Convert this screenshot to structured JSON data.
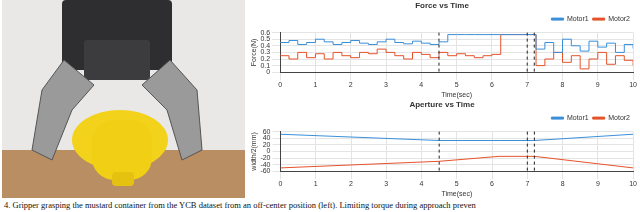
{
  "caption": "4.   Gripper grasping the mustard container from the YCB dataset from an off-center position (left). Limiting torque during approach preven",
  "chart_data": [
    {
      "type": "line",
      "title": "Force vs Time",
      "x_label": "Time(sec)",
      "y_label": "Force(N)",
      "line_style": "steps",
      "x": [
        0,
        0.25,
        0.5,
        0.75,
        1,
        1.25,
        1.5,
        1.75,
        2,
        2.25,
        2.5,
        2.75,
        3,
        3.25,
        3.5,
        3.75,
        4,
        4.25,
        4.5,
        4.75,
        5,
        5.25,
        5.5,
        5.75,
        6,
        6.25,
        6.5,
        6.75,
        7,
        7.25,
        7.5,
        7.75,
        8,
        8.25,
        8.5,
        8.75,
        9,
        9.25,
        9.5,
        9.75,
        10
      ],
      "series": [
        {
          "name": "Motor1",
          "color": "#3b8fd9",
          "values": [
            0.45,
            0.48,
            0.42,
            0.45,
            0.5,
            0.46,
            0.42,
            0.45,
            0.48,
            0.44,
            0.42,
            0.46,
            0.5,
            0.45,
            0.43,
            0.47,
            0.44,
            0.42,
            0.46,
            0.57,
            0.57,
            0.57,
            0.57,
            0.57,
            0.57,
            0.57,
            0.57,
            0.57,
            0.57,
            0.35,
            0.45,
            0.3,
            0.5,
            0.4,
            0.32,
            0.47,
            0.38,
            0.44,
            0.3,
            0.42,
            0.36
          ]
        },
        {
          "name": "Motor2",
          "color": "#e5532b",
          "values": [
            0.25,
            0.2,
            0.3,
            0.22,
            0.28,
            0.2,
            0.3,
            0.25,
            0.22,
            0.3,
            0.28,
            0.35,
            0.3,
            0.25,
            0.2,
            0.3,
            0.27,
            0.22,
            0.3,
            0.25,
            0.28,
            0.25,
            0.22,
            0.25,
            0.27,
            0.57,
            0.57,
            0.57,
            0.57,
            0.1,
            0.2,
            0.3,
            0.15,
            0.25,
            0.05,
            0.2,
            0.3,
            0.12,
            0.25,
            0.18,
            0.1
          ]
        }
      ],
      "xlim": [
        0,
        10
      ],
      "xticks": [
        0,
        1,
        2,
        3,
        4,
        5,
        6,
        7,
        8,
        9,
        10
      ],
      "ylim": [
        0,
        0.6
      ],
      "yticks": [
        0,
        0.1,
        0.2,
        0.3,
        0.4,
        0.5,
        0.6
      ],
      "vlines": [
        4.5,
        7.0,
        7.2
      ],
      "grid": true,
      "legend": "upper right"
    },
    {
      "type": "line",
      "title": "Aperture vs Time",
      "x_label": "Time(sec)",
      "y_label": "width/2(mm)",
      "line_style": "solid",
      "x": [
        0,
        4.5,
        6.2,
        7.2,
        10
      ],
      "series": [
        {
          "name": "Motor1",
          "color": "#3b8fd9",
          "values": [
            52,
            33,
            33,
            33,
            52
          ]
        },
        {
          "name": "Motor2",
          "color": "#e5532b",
          "values": [
            -50,
            -30,
            -15,
            -15,
            -50
          ]
        }
      ],
      "xlim": [
        0,
        10
      ],
      "xticks": [
        0,
        1,
        2,
        3,
        4,
        5,
        6,
        7,
        8,
        9,
        10
      ],
      "ylim": [
        -60,
        60
      ],
      "yticks": [
        -60,
        -40,
        -20,
        0,
        20,
        40,
        60
      ],
      "vlines": [
        4.5,
        7.0,
        7.2
      ],
      "grid": true,
      "legend": "upper right"
    }
  ]
}
